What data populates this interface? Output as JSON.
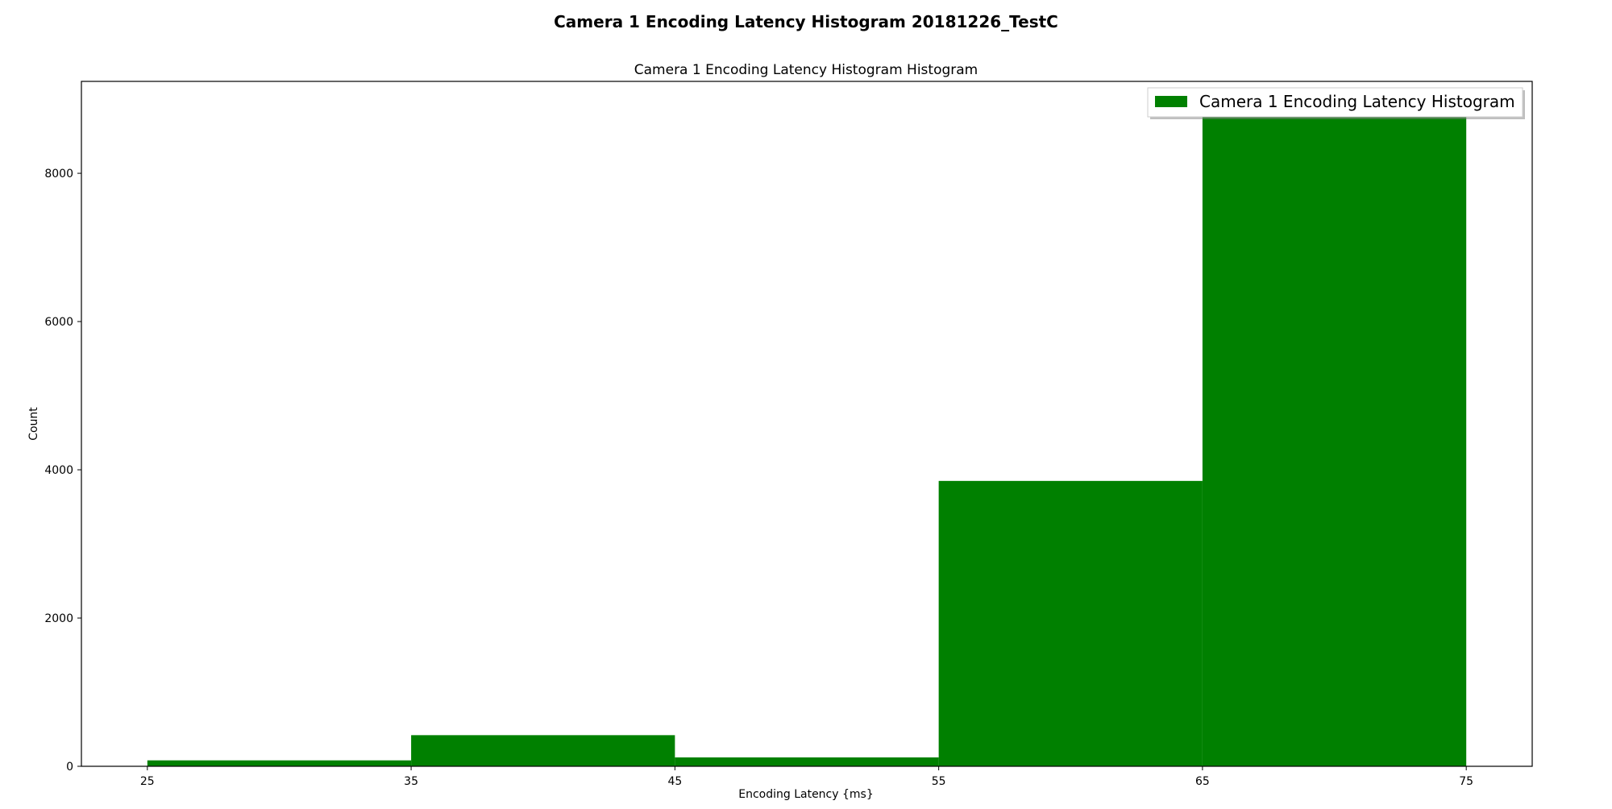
{
  "chart_data": {
    "type": "bar",
    "suptitle": "Camera 1 Encoding Latency Histogram 20181226_TestC",
    "title": "Camera 1 Encoding Latency Histogram Histogram",
    "xlabel": "Encoding Latency {ms}",
    "ylabel": "Count",
    "bins": [
      {
        "start": 25,
        "end": 35,
        "value": 80
      },
      {
        "start": 35,
        "end": 45,
        "value": 420
      },
      {
        "start": 45,
        "end": 55,
        "value": 120
      },
      {
        "start": 55,
        "end": 65,
        "value": 3850
      },
      {
        "start": 65,
        "end": 75,
        "value": 8800
      }
    ],
    "xticks": [
      "25",
      "35",
      "45",
      "55",
      "65",
      "75"
    ],
    "yticks": [
      "0",
      "2000",
      "4000",
      "6000",
      "8000"
    ],
    "xlim": [
      22.5,
      77.5
    ],
    "ylim": [
      0,
      9240
    ],
    "grid": false,
    "legend": {
      "position": "top-right",
      "entries": [
        {
          "label": "Camera 1 Encoding Latency Histogram",
          "color": "#008000"
        }
      ]
    },
    "bar_color": "#008000"
  }
}
